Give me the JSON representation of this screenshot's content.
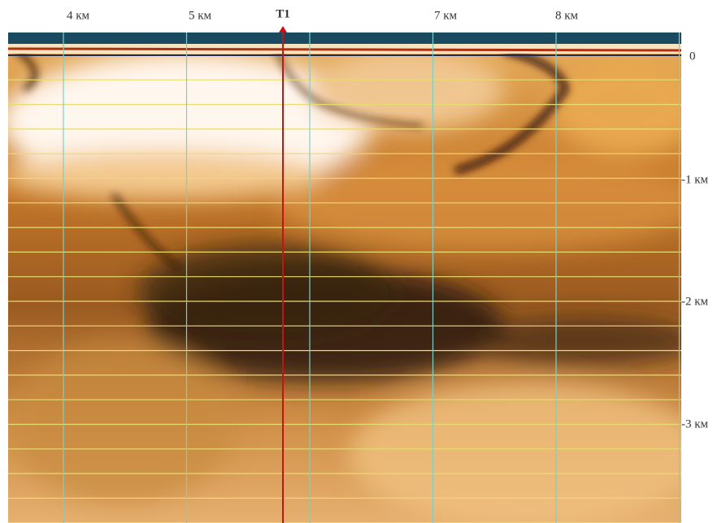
{
  "x_labels": [
    "4 км",
    "5 км",
    "7 км",
    "8 км"
  ],
  "marker_label": "T1",
  "y_labels": [
    "0",
    "-1 км",
    "-2 км",
    "-3 км"
  ]
}
